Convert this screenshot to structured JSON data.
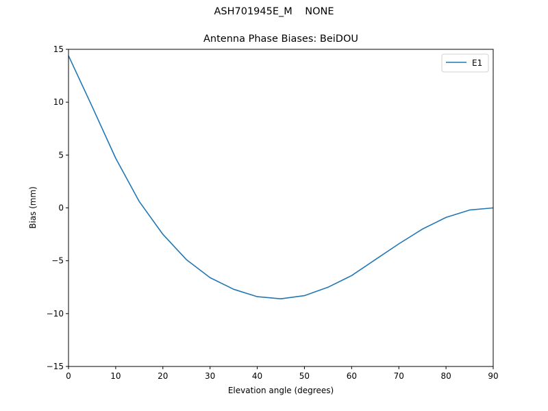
{
  "figure": {
    "suptitle": "ASH701945E_M    NONE",
    "title": "Antenna Phase Biases: BeiDOU"
  },
  "chart_data": {
    "type": "line",
    "title": "Antenna Phase Biases: BeiDOU",
    "suptitle": "ASH701945E_M    NONE",
    "xlabel": "Elevation angle (degrees)",
    "ylabel": "Bias (mm)",
    "xlim": [
      0,
      90
    ],
    "ylim": [
      -15,
      15
    ],
    "xticks": [
      0,
      10,
      20,
      30,
      40,
      50,
      60,
      70,
      80,
      90
    ],
    "yticks": [
      -15,
      -10,
      -5,
      0,
      5,
      10,
      15
    ],
    "ytick_labels": [
      "−15",
      "−10",
      "−5",
      "0",
      "5",
      "10",
      "15"
    ],
    "grid": false,
    "legend_position": "upper right",
    "x": [
      0,
      5,
      10,
      15,
      20,
      25,
      30,
      35,
      40,
      45,
      50,
      55,
      60,
      65,
      70,
      75,
      80,
      85,
      90
    ],
    "series": [
      {
        "name": "E1",
        "color": "#1f77b4",
        "values": [
          14.4,
          9.6,
          4.7,
          0.6,
          -2.5,
          -4.9,
          -6.6,
          -7.7,
          -8.4,
          -8.6,
          -8.3,
          -7.5,
          -6.4,
          -4.9,
          -3.4,
          -2.0,
          -0.9,
          -0.2,
          0.0
        ]
      }
    ]
  }
}
